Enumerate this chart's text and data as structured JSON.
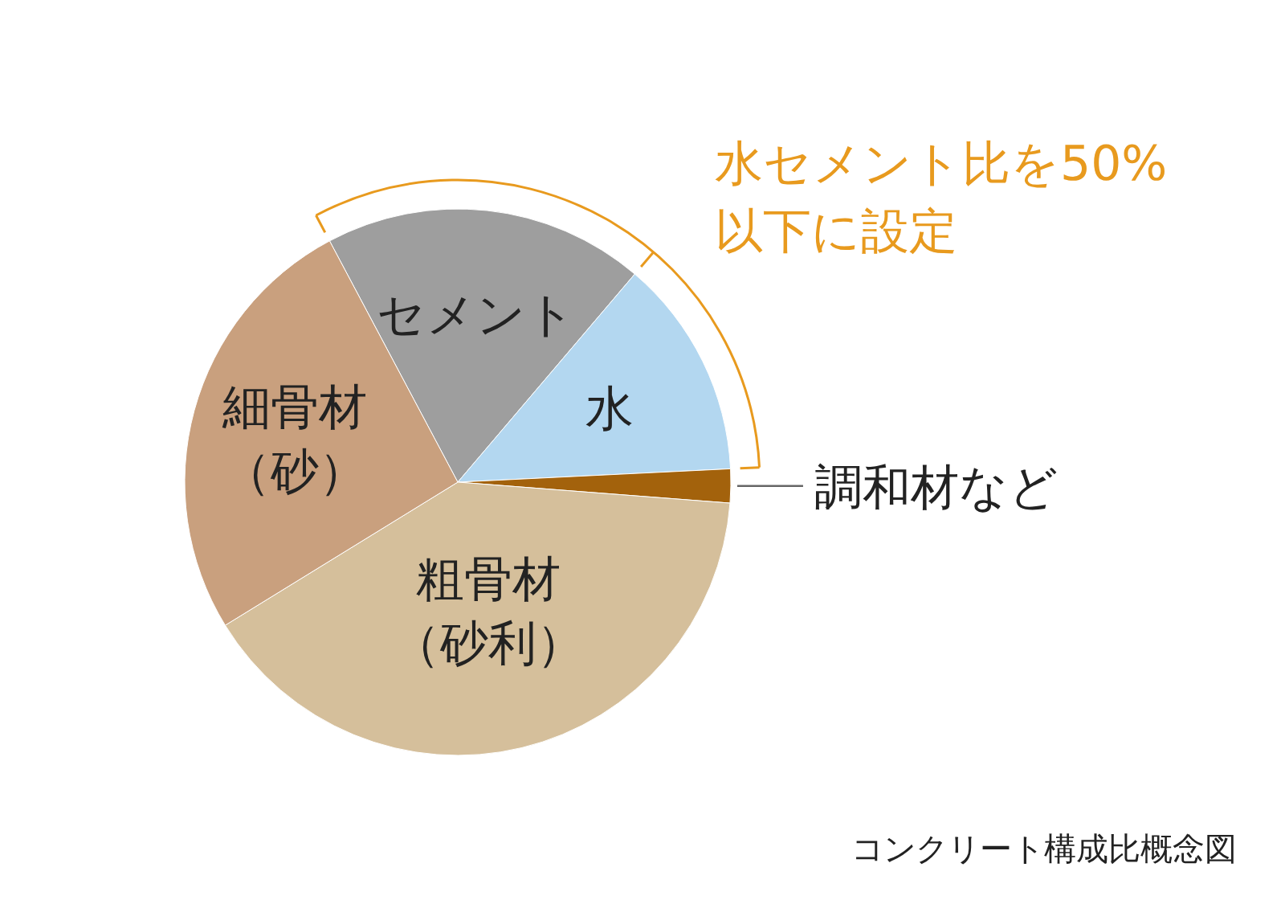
{
  "chart_data": {
    "type": "pie",
    "categories": [
      "セメント",
      "水",
      "調和材など",
      "粗骨材（砂利）",
      "細骨材（砂）"
    ],
    "values": [
      19,
      13,
      2,
      40,
      26
    ],
    "colors": [
      "#9e9e9e",
      "#b3d7f0",
      "#a3620c",
      "#d5bf9b",
      "#c9a07e"
    ],
    "annotations": [
      "水セメント比を50%以下に設定",
      "コンクリート構成比概念図"
    ]
  }
}
